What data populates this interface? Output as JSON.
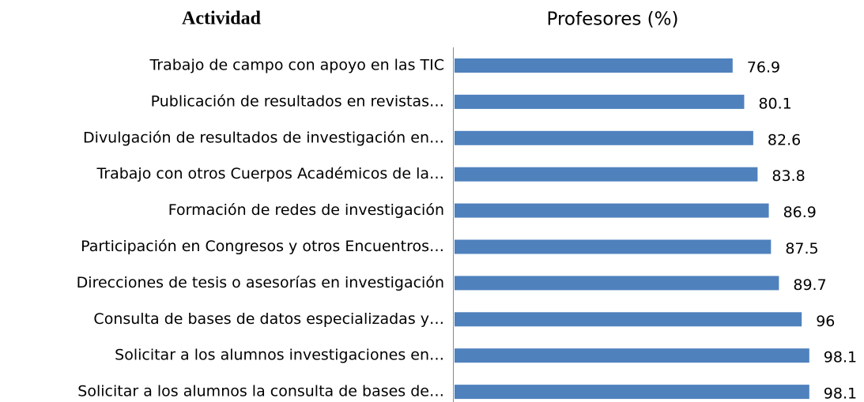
{
  "chart_data": {
    "type": "barh",
    "y_label": "Actividad",
    "x_label": "Profesores (%)",
    "categories": [
      "Trabajo de campo con apoyo en las TIC",
      "Publicación de resultados en revistas…",
      "Divulgación de resultados de investigación en…",
      "Trabajo con otros Cuerpos Académicos de la…",
      "Formación de redes de investigación",
      "Participación en Congresos y otros Encuentros…",
      "Direcciones de tesis o asesorías en investigación",
      "Consulta de bases de datos especializadas y…",
      "Solicitar a los alumnos investigaciones en…",
      "Solicitar a los alumnos la consulta de bases de…"
    ],
    "values": [
      76.9,
      80.1,
      82.6,
      83.8,
      86.9,
      87.5,
      89.7,
      96,
      98.1,
      98.1
    ],
    "color": "#4f81bd",
    "xlim": [
      0,
      100
    ]
  }
}
